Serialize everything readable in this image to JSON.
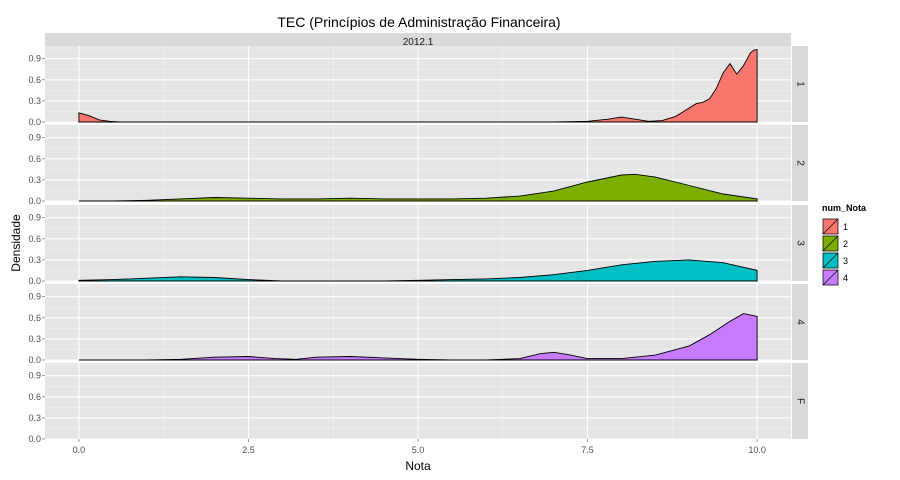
{
  "chart_data": {
    "type": "area",
    "title": "TEC (Princípios de Administração Financeira)",
    "column_strip": "2012.1",
    "xlabel": "Nota",
    "ylabel": "Densidade",
    "xlim": [
      -0.5,
      10.5
    ],
    "ylim": [
      0,
      1.08
    ],
    "x_ticks": [
      0,
      2.5,
      5,
      7.5,
      10
    ],
    "x_tick_labels": [
      "0.0",
      "2.5",
      "5.0",
      "7.5",
      "10.0"
    ],
    "y_ticks": [
      0,
      0.3,
      0.6,
      0.9
    ],
    "y_tick_labels": [
      "0.0",
      "0.3",
      "0.6",
      "0.9"
    ],
    "grid": true,
    "legend": {
      "title": "num_Nota",
      "position": "right",
      "entries": [
        "1",
        "2",
        "3",
        "4"
      ]
    },
    "panels": [
      {
        "strip": "1",
        "series": "1",
        "color": "#F8766D",
        "x": [
          0,
          0.15,
          0.3,
          0.45,
          0.6,
          1,
          2,
          3,
          4,
          5,
          6,
          7,
          7.5,
          7.8,
          8.0,
          8.2,
          8.4,
          8.6,
          8.8,
          9.0,
          9.1,
          9.2,
          9.3,
          9.4,
          9.5,
          9.6,
          9.7,
          9.8,
          9.9,
          9.95,
          10
        ],
        "y": [
          0.13,
          0.09,
          0.03,
          0.01,
          0.0,
          0.0,
          0.0,
          0.0,
          0.0,
          0.0,
          0.0,
          0.0,
          0.01,
          0.04,
          0.07,
          0.04,
          0.01,
          0.02,
          0.08,
          0.2,
          0.26,
          0.28,
          0.33,
          0.48,
          0.7,
          0.83,
          0.68,
          0.8,
          0.98,
          1.02,
          1.03
        ]
      },
      {
        "strip": "2",
        "series": "2",
        "color": "#7CAE00",
        "x": [
          0,
          0.5,
          1,
          1.5,
          2,
          2.5,
          3,
          3.5,
          4,
          4.5,
          5,
          5.5,
          6,
          6.5,
          7,
          7.5,
          8,
          8.2,
          8.5,
          9,
          9.5,
          10
        ],
        "y": [
          0.0,
          0.0,
          0.01,
          0.03,
          0.05,
          0.04,
          0.03,
          0.03,
          0.04,
          0.03,
          0.03,
          0.03,
          0.04,
          0.07,
          0.14,
          0.27,
          0.37,
          0.38,
          0.34,
          0.22,
          0.1,
          0.03
        ]
      },
      {
        "strip": "3",
        "series": "3",
        "color": "#00BFC4",
        "x": [
          0,
          0.5,
          1,
          1.5,
          2,
          2.5,
          3,
          3.5,
          4,
          4.5,
          5,
          5.5,
          6,
          6.5,
          7,
          7.5,
          8,
          8.5,
          9,
          9.5,
          10
        ],
        "y": [
          0.01,
          0.02,
          0.04,
          0.06,
          0.05,
          0.02,
          0.0,
          0.0,
          0.0,
          0.0,
          0.01,
          0.02,
          0.03,
          0.05,
          0.09,
          0.15,
          0.23,
          0.28,
          0.3,
          0.26,
          0.15
        ]
      },
      {
        "strip": "4",
        "series": "4",
        "color": "#C77CFF",
        "x": [
          0,
          0.5,
          1,
          1.5,
          2,
          2.5,
          2.9,
          3.2,
          3.5,
          4,
          4.5,
          5,
          5.5,
          6,
          6.5,
          6.8,
          7,
          7.2,
          7.5,
          8,
          8.5,
          9,
          9.3,
          9.6,
          9.8,
          10
        ],
        "y": [
          0.0,
          0.0,
          0.0,
          0.01,
          0.04,
          0.05,
          0.02,
          0.01,
          0.04,
          0.05,
          0.03,
          0.01,
          0.0,
          0.0,
          0.02,
          0.09,
          0.11,
          0.08,
          0.02,
          0.02,
          0.07,
          0.2,
          0.36,
          0.55,
          0.66,
          0.62
        ]
      },
      {
        "strip": "F",
        "series": null,
        "color": null,
        "x": [],
        "y": []
      }
    ]
  }
}
